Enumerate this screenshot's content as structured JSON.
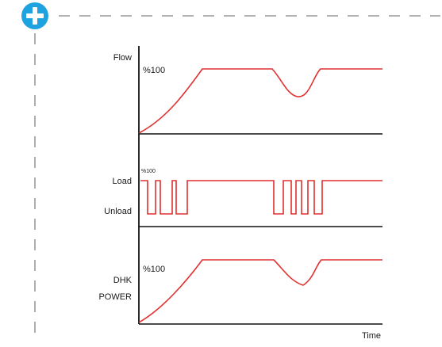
{
  "colors": {
    "curve": "#e03030",
    "axis": "#111111",
    "dash": "#9a9a9a",
    "add_button": "#1ea3e0"
  },
  "icons": {
    "add": "plus-circle-icon"
  },
  "panels": {
    "flow": {
      "label": "Flow",
      "percent": "%100"
    },
    "load": {
      "label_top": "Load",
      "label_bottom": "Unload",
      "percent": "%100"
    },
    "power": {
      "label_line1": "DHK",
      "label_line2": "POWER",
      "percent": "%100"
    }
  },
  "x_axis": {
    "label": "Time"
  }
}
